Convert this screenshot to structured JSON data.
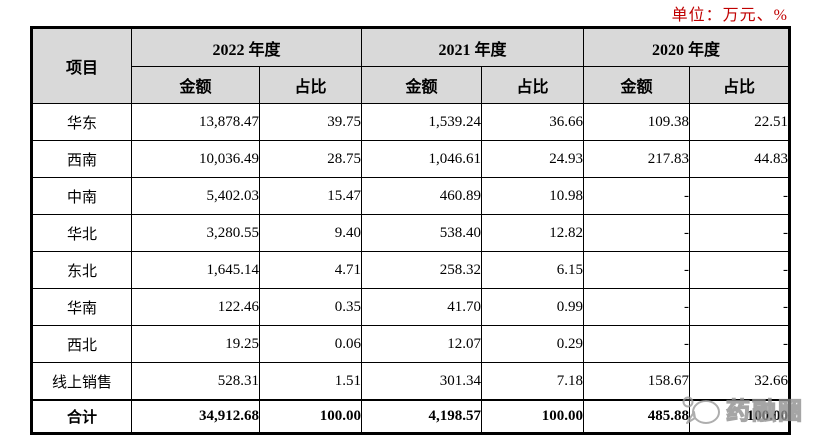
{
  "unit_label": "单位：万元、%",
  "table": {
    "item_header": "项目",
    "year_groups": [
      {
        "label": "2022 年度",
        "sub": [
          "金额",
          "占比"
        ]
      },
      {
        "label": "2021 年度",
        "sub": [
          "金额",
          "占比"
        ]
      },
      {
        "label": "2020 年度",
        "sub": [
          "金额",
          "占比"
        ]
      }
    ],
    "rows": [
      {
        "item": "华东",
        "values": [
          "13,878.47",
          "39.75",
          "1,539.24",
          "36.66",
          "109.38",
          "22.51"
        ],
        "total": false
      },
      {
        "item": "西南",
        "values": [
          "10,036.49",
          "28.75",
          "1,046.61",
          "24.93",
          "217.83",
          "44.83"
        ],
        "total": false
      },
      {
        "item": "中南",
        "values": [
          "5,402.03",
          "15.47",
          "460.89",
          "10.98",
          "-",
          "-"
        ],
        "total": false
      },
      {
        "item": "华北",
        "values": [
          "3,280.55",
          "9.40",
          "538.40",
          "12.82",
          "-",
          "-"
        ],
        "total": false
      },
      {
        "item": "东北",
        "values": [
          "1,645.14",
          "4.71",
          "258.32",
          "6.15",
          "-",
          "-"
        ],
        "total": false
      },
      {
        "item": "华南",
        "values": [
          "122.46",
          "0.35",
          "41.70",
          "0.99",
          "-",
          "-"
        ],
        "total": false
      },
      {
        "item": "西北",
        "values": [
          "19.25",
          "0.06",
          "12.07",
          "0.29",
          "-",
          "-"
        ],
        "total": false
      },
      {
        "item": "线上销售",
        "values": [
          "528.31",
          "1.51",
          "301.34",
          "7.18",
          "158.67",
          "32.66"
        ],
        "total": false
      },
      {
        "item": "合计",
        "values": [
          "34,912.68",
          "100.00",
          "4,198.57",
          "100.00",
          "485.88",
          "100.00"
        ],
        "total": true
      }
    ]
  },
  "watermark": {
    "text": "药融圈",
    "icon": "chat-bubble-icon"
  },
  "colors": {
    "unit_text": "#c00000",
    "header_bg": "#d9d9d9",
    "border": "#000000",
    "watermark": "#8f8f8f"
  }
}
